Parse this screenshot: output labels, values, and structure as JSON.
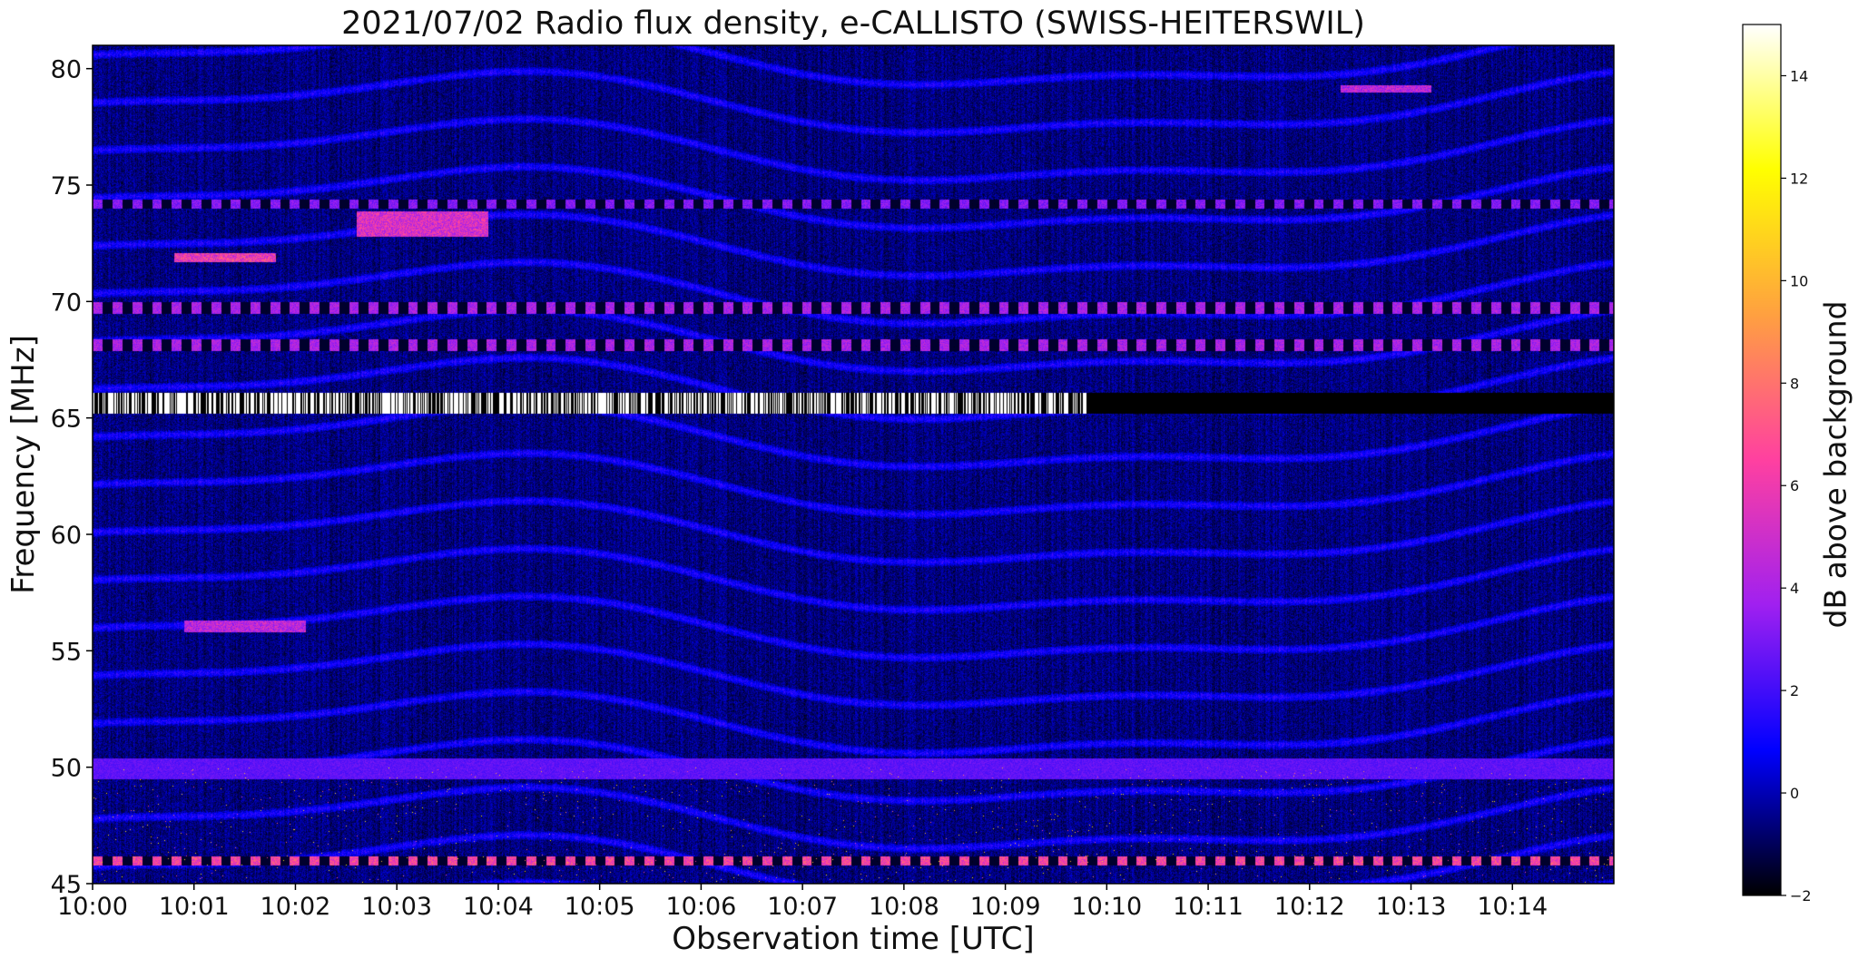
{
  "chart_data": {
    "type": "heatmap",
    "title": "2021/07/02  Radio flux density, e-CALLISTO (SWISS-HEITERSWIL)",
    "xlabel": "Observation time [UTC]",
    "ylabel": "Frequency [MHz]",
    "x_ticks": [
      "10:00",
      "10:01",
      "10:02",
      "10:03",
      "10:04",
      "10:05",
      "10:06",
      "10:07",
      "10:08",
      "10:09",
      "10:10",
      "10:11",
      "10:12",
      "10:13",
      "10:14"
    ],
    "x_range_minutes": [
      0,
      15
    ],
    "y_ticks": [
      45,
      50,
      55,
      60,
      65,
      70,
      75,
      80
    ],
    "ylim": [
      45,
      81
    ],
    "colorbar": {
      "label": "dB above background",
      "range": [
        -2,
        15
      ],
      "ticks": [
        -2,
        0,
        2,
        4,
        6,
        8,
        10,
        12,
        14
      ],
      "colormap": [
        "#000000",
        "#0000ff",
        "#a020f0",
        "#ff40a0",
        "#ffa040",
        "#ffff00",
        "#ffffff"
      ]
    },
    "features": [
      {
        "label": "strong RFI band",
        "freq_mhz": [
          65.2,
          66.1
        ],
        "time_min": [
          0,
          9.8
        ],
        "level_db": 15
      },
      {
        "label": "RFI band",
        "freq_mhz": [
          49.5,
          50.4
        ],
        "time_min": [
          0,
          15
        ],
        "level_db": 2.5
      },
      {
        "label": "intermittent band",
        "freq_mhz": [
          69.5,
          70.0
        ],
        "time_min": [
          0,
          15
        ],
        "level_db": 5
      },
      {
        "label": "intermittent band",
        "freq_mhz": [
          67.9,
          68.4
        ],
        "time_min": [
          0,
          15
        ],
        "level_db": 5
      },
      {
        "label": "intermittent band",
        "freq_mhz": [
          74.0,
          74.4
        ],
        "time_min": [
          0,
          15
        ],
        "level_db": 4
      },
      {
        "label": "intermittent band",
        "freq_mhz": [
          45.8,
          46.2
        ],
        "time_min": [
          0,
          15
        ],
        "level_db": 8
      },
      {
        "label": "burst",
        "freq_mhz": [
          71.7,
          72.1
        ],
        "time_min": [
          0.8,
          1.8
        ],
        "level_db": 8
      },
      {
        "label": "burst",
        "freq_mhz": [
          72.8,
          73.9
        ],
        "time_min": [
          2.6,
          3.9
        ],
        "level_db": 7
      },
      {
        "label": "burst",
        "freq_mhz": [
          55.8,
          56.3
        ],
        "time_min": [
          0.9,
          2.1
        ],
        "level_db": 6
      },
      {
        "label": "burst",
        "freq_mhz": [
          79.0,
          79.3
        ],
        "time_min": [
          12.3,
          13.2
        ],
        "level_db": 6
      }
    ]
  }
}
